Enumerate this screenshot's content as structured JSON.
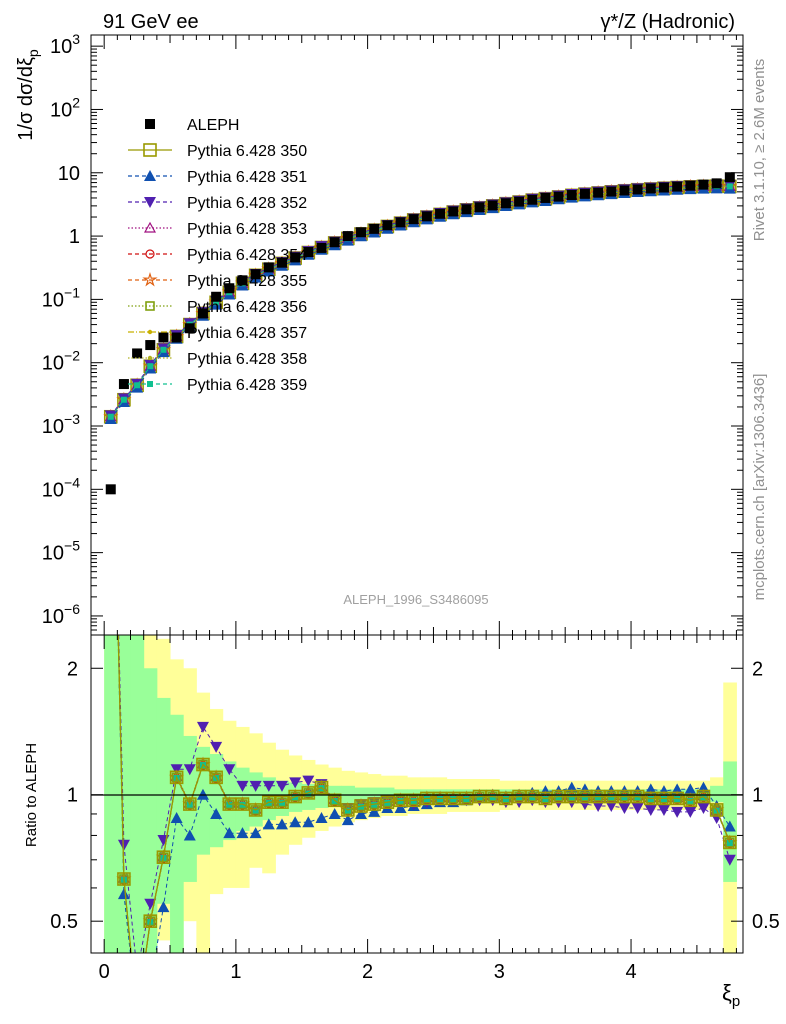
{
  "header": {
    "left": "91 GeV ee",
    "right_main": "γ*/Z (Hadronic)"
  },
  "side": {
    "rivet": "Rivet 3.1.10, ≥ 2.6M events",
    "mcplots": "mcplots.cern.ch [arXiv:1306.3436]"
  },
  "analysis_id": "ALEPH_1996_S3486095",
  "chart_data": [
    {
      "type": "scatter",
      "panel": "main",
      "ylabel": "1/σ dσ/dξp",
      "xlabel": "ξp",
      "xlim": [
        -0.1,
        4.85
      ],
      "ylim": [
        5e-07,
        1500
      ],
      "yscale": "log",
      "yticks": [
        {
          "v": 1e-06,
          "b": "10",
          "e": "−6"
        },
        {
          "v": 1e-05,
          "b": "10",
          "e": "−5"
        },
        {
          "v": 0.0001,
          "b": "10",
          "e": "−4"
        },
        {
          "v": 0.001,
          "b": "10",
          "e": "−3"
        },
        {
          "v": 0.01,
          "b": "10",
          "e": "−2"
        },
        {
          "v": 0.1,
          "b": "10",
          "e": "−1"
        },
        {
          "v": 1,
          "b": "1",
          "e": ""
        },
        {
          "v": 10,
          "b": "10",
          "e": ""
        },
        {
          "v": 100,
          "b": "10",
          "e": "2"
        },
        {
          "v": 1000,
          "b": "10",
          "e": "3"
        }
      ],
      "xticks": [
        "0",
        "1",
        "2",
        "3",
        "4"
      ],
      "legend": [
        "ALEPH",
        "Pythia 6.428 350",
        "Pythia 6.428 351",
        "Pythia 6.428 352",
        "Pythia 6.428 353",
        "Pythia 6.428 354",
        "Pythia 6.428 355",
        "Pythia 6.428 356",
        "Pythia 6.428 357",
        "Pythia 6.428 358",
        "Pythia 6.428 359"
      ],
      "legend_position": "upper-left",
      "series_colors": [
        "#000000",
        "#999900",
        "#1050b0",
        "#5020b0",
        "#a01080",
        "#d01010",
        "#e06010",
        "#80a010",
        "#c8b000",
        "#b0b020",
        "#10c090"
      ],
      "data": {
        "x": [
          0.05,
          0.15,
          0.25,
          0.35,
          0.45,
          0.55,
          0.65,
          0.75,
          0.85,
          0.95,
          1.05,
          1.15,
          1.25,
          1.35,
          1.45,
          1.55,
          1.65,
          1.75,
          1.85,
          1.95,
          2.05,
          2.15,
          2.25,
          2.35,
          2.45,
          2.55,
          2.65,
          2.75,
          2.85,
          2.95,
          3.05,
          3.15,
          3.25,
          3.35,
          3.45,
          3.55,
          3.65,
          3.75,
          3.85,
          3.95,
          4.05,
          4.15,
          4.25,
          4.35,
          4.45,
          4.55,
          4.65,
          4.75
        ],
        "aleph": [
          0.0001,
          0.0046,
          0.014,
          0.019,
          0.025,
          0.025,
          0.035,
          0.06,
          0.11,
          0.15,
          0.2,
          0.25,
          0.32,
          0.38,
          0.46,
          0.56,
          0.65,
          0.8,
          1.0,
          1.15,
          1.3,
          1.48,
          1.65,
          1.85,
          2.05,
          2.25,
          2.45,
          2.65,
          2.85,
          3.05,
          3.3,
          3.5,
          3.75,
          4.0,
          4.2,
          4.45,
          4.65,
          4.85,
          5.05,
          5.25,
          5.45,
          5.65,
          5.85,
          6.05,
          6.25,
          6.5,
          6.8,
          8.5
        ],
        "mc": [
          0.0014,
          0.0026,
          0.0044,
          0.0088,
          0.016,
          0.026,
          0.04,
          0.06,
          0.09,
          0.13,
          0.18,
          0.24,
          0.3,
          0.37,
          0.45,
          0.55,
          0.66,
          0.78,
          0.92,
          1.08,
          1.24,
          1.42,
          1.6,
          1.8,
          2.0,
          2.2,
          2.4,
          2.6,
          2.8,
          3.0,
          3.25,
          3.45,
          3.7,
          3.9,
          4.15,
          4.4,
          4.6,
          4.8,
          5.0,
          5.2,
          5.4,
          5.55,
          5.7,
          5.85,
          6.0,
          6.1,
          6.15,
          6.1
        ]
      }
    },
    {
      "type": "scatter",
      "panel": "ratio",
      "ylabel": "Ratio to ALEPH",
      "xlabel": "ξp",
      "xlim": [
        -0.1,
        4.85
      ],
      "ylim": [
        0.42,
        2.4
      ],
      "yscale": "log",
      "yticks": [
        "0.5",
        "1",
        "2"
      ],
      "xticks": [
        "0",
        "1",
        "2",
        "3",
        "4"
      ],
      "reference_line": 1,
      "data": {
        "x": [
          0.05,
          0.15,
          0.25,
          0.35,
          0.45,
          0.55,
          0.65,
          0.75,
          0.85,
          0.95,
          1.05,
          1.15,
          1.25,
          1.35,
          1.45,
          1.55,
          1.65,
          1.75,
          1.85,
          1.95,
          2.05,
          2.15,
          2.25,
          2.35,
          2.45,
          2.55,
          2.65,
          2.75,
          2.85,
          2.95,
          3.05,
          3.15,
          3.25,
          3.35,
          3.45,
          3.55,
          3.65,
          3.75,
          3.85,
          3.95,
          4.05,
          4.15,
          4.25,
          4.35,
          4.45,
          4.55,
          4.65,
          4.75
        ],
        "band_yellow_lo": [
          0.3,
          0.3,
          0.3,
          0.3,
          0.45,
          0.3,
          0.5,
          0.3,
          0.58,
          0.6,
          0.6,
          0.67,
          0.65,
          0.72,
          0.76,
          0.79,
          0.82,
          0.84,
          0.86,
          0.87,
          0.88,
          0.89,
          0.89,
          0.9,
          0.9,
          0.9,
          0.91,
          0.91,
          0.91,
          0.91,
          0.92,
          0.92,
          0.92,
          0.92,
          0.92,
          0.92,
          0.92,
          0.92,
          0.92,
          0.92,
          0.92,
          0.92,
          0.92,
          0.92,
          0.92,
          0.92,
          0.91,
          0.3
        ],
        "band_yellow_hi": [
          2.4,
          2.4,
          2.4,
          2.4,
          2.35,
          2.1,
          2.0,
          1.75,
          1.6,
          1.5,
          1.45,
          1.4,
          1.33,
          1.28,
          1.24,
          1.21,
          1.18,
          1.16,
          1.14,
          1.13,
          1.12,
          1.11,
          1.11,
          1.1,
          1.1,
          1.1,
          1.09,
          1.09,
          1.09,
          1.09,
          1.08,
          1.08,
          1.08,
          1.08,
          1.08,
          1.08,
          1.08,
          1.08,
          1.08,
          1.08,
          1.08,
          1.08,
          1.08,
          1.08,
          1.08,
          1.08,
          1.1,
          1.85
        ],
        "band_green_lo": [
          0.3,
          0.3,
          0.3,
          0.3,
          0.55,
          0.4,
          0.62,
          0.72,
          0.75,
          0.78,
          0.82,
          0.84,
          0.87,
          0.89,
          0.91,
          0.92,
          0.93,
          0.94,
          0.94,
          0.95,
          0.95,
          0.95,
          0.96,
          0.96,
          0.96,
          0.96,
          0.96,
          0.96,
          0.96,
          0.96,
          0.97,
          0.97,
          0.97,
          0.97,
          0.97,
          0.97,
          0.97,
          0.97,
          0.97,
          0.97,
          0.97,
          0.97,
          0.97,
          0.97,
          0.97,
          0.97,
          0.96,
          0.62
        ],
        "band_green_hi": [
          2.4,
          2.4,
          2.4,
          2.0,
          1.7,
          1.55,
          1.38,
          1.3,
          1.25,
          1.2,
          1.16,
          1.13,
          1.1,
          1.08,
          1.07,
          1.06,
          1.05,
          1.05,
          1.05,
          1.04,
          1.04,
          1.04,
          1.03,
          1.03,
          1.03,
          1.03,
          1.03,
          1.03,
          1.03,
          1.03,
          1.03,
          1.03,
          1.03,
          1.03,
          1.03,
          1.03,
          1.03,
          1.03,
          1.03,
          1.03,
          1.03,
          1.03,
          1.03,
          1.03,
          1.03,
          1.03,
          1.05,
          1.2
        ],
        "r350": [
          14,
          0.63,
          0.3,
          0.5,
          0.71,
          1.1,
          0.95,
          1.18,
          1.1,
          0.95,
          0.95,
          0.92,
          0.96,
          0.96,
          0.99,
          1.01,
          1.04,
          0.97,
          0.92,
          0.94,
          0.95,
          0.96,
          0.97,
          0.97,
          0.98,
          0.98,
          0.98,
          0.98,
          0.99,
          0.99,
          0.98,
          0.99,
          0.99,
          0.98,
          0.99,
          0.99,
          0.99,
          0.99,
          0.99,
          0.99,
          0.99,
          0.98,
          0.98,
          0.98,
          0.97,
          0.99,
          0.92,
          0.77
        ],
        "r351": [
          14,
          0.58,
          0.3,
          0.35,
          0.54,
          0.88,
          0.8,
          1.0,
          0.9,
          0.81,
          0.81,
          0.81,
          0.85,
          0.85,
          0.86,
          0.86,
          0.88,
          0.9,
          0.87,
          0.9,
          0.91,
          0.93,
          0.93,
          0.94,
          0.95,
          0.96,
          0.96,
          0.97,
          0.99,
          1.0,
          0.99,
          1.0,
          1.01,
          1.02,
          1.02,
          1.04,
          1.03,
          1.02,
          1.02,
          1.02,
          1.02,
          1.03,
          1.02,
          1.03,
          1.03,
          1.04,
          0.94,
          0.84
        ],
        "r352": [
          14,
          0.76,
          0.38,
          0.55,
          0.78,
          1.15,
          1.15,
          1.45,
          1.3,
          1.15,
          1.05,
          1.05,
          1.05,
          1.05,
          1.07,
          1.08,
          1.06,
          0.97,
          0.93,
          0.95,
          0.96,
          0.96,
          0.96,
          0.95,
          0.96,
          0.97,
          0.97,
          0.97,
          0.97,
          0.97,
          0.96,
          0.96,
          0.97,
          0.96,
          0.96,
          0.96,
          0.95,
          0.94,
          0.94,
          0.93,
          0.93,
          0.92,
          0.92,
          0.91,
          0.91,
          0.93,
          0.88,
          0.7
        ]
      }
    }
  ]
}
